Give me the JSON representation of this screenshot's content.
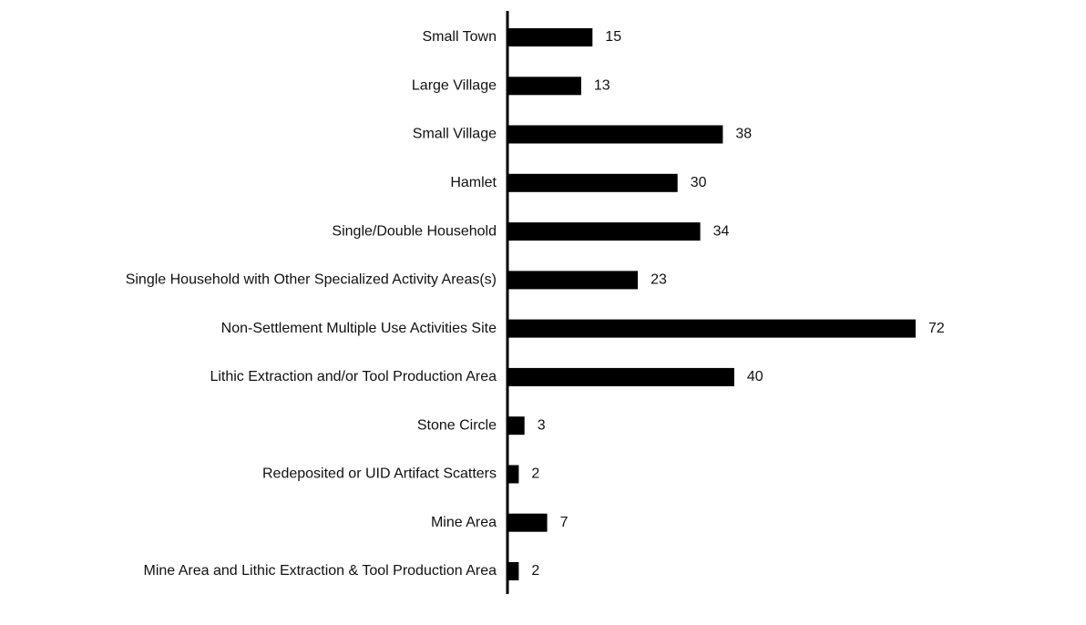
{
  "chart_data": {
    "type": "bar",
    "orientation": "horizontal",
    "categories": [
      "Small Town",
      "Large Village",
      "Small Village",
      "Hamlet",
      "Single/Double Household",
      "Single Household with Other Specialized Activity Areas(s)",
      "Non-Settlement Multiple Use Activities Site",
      "Lithic Extraction and/or Tool Production Area",
      "Stone Circle",
      "Redeposited or UID Artifact Scatters",
      "Mine Area",
      "Mine Area and Lithic Extraction & Tool Production Area"
    ],
    "values": [
      15,
      13,
      38,
      30,
      34,
      23,
      72,
      40,
      3,
      2,
      7,
      2
    ],
    "title": "",
    "xlabel": "",
    "ylabel": "",
    "xlim": [
      0,
      72
    ],
    "grid": false,
    "data_labels": true,
    "colors": {
      "bar": "#000000",
      "axis": "#000000",
      "text": "#111111",
      "background": "#ffffff"
    }
  }
}
